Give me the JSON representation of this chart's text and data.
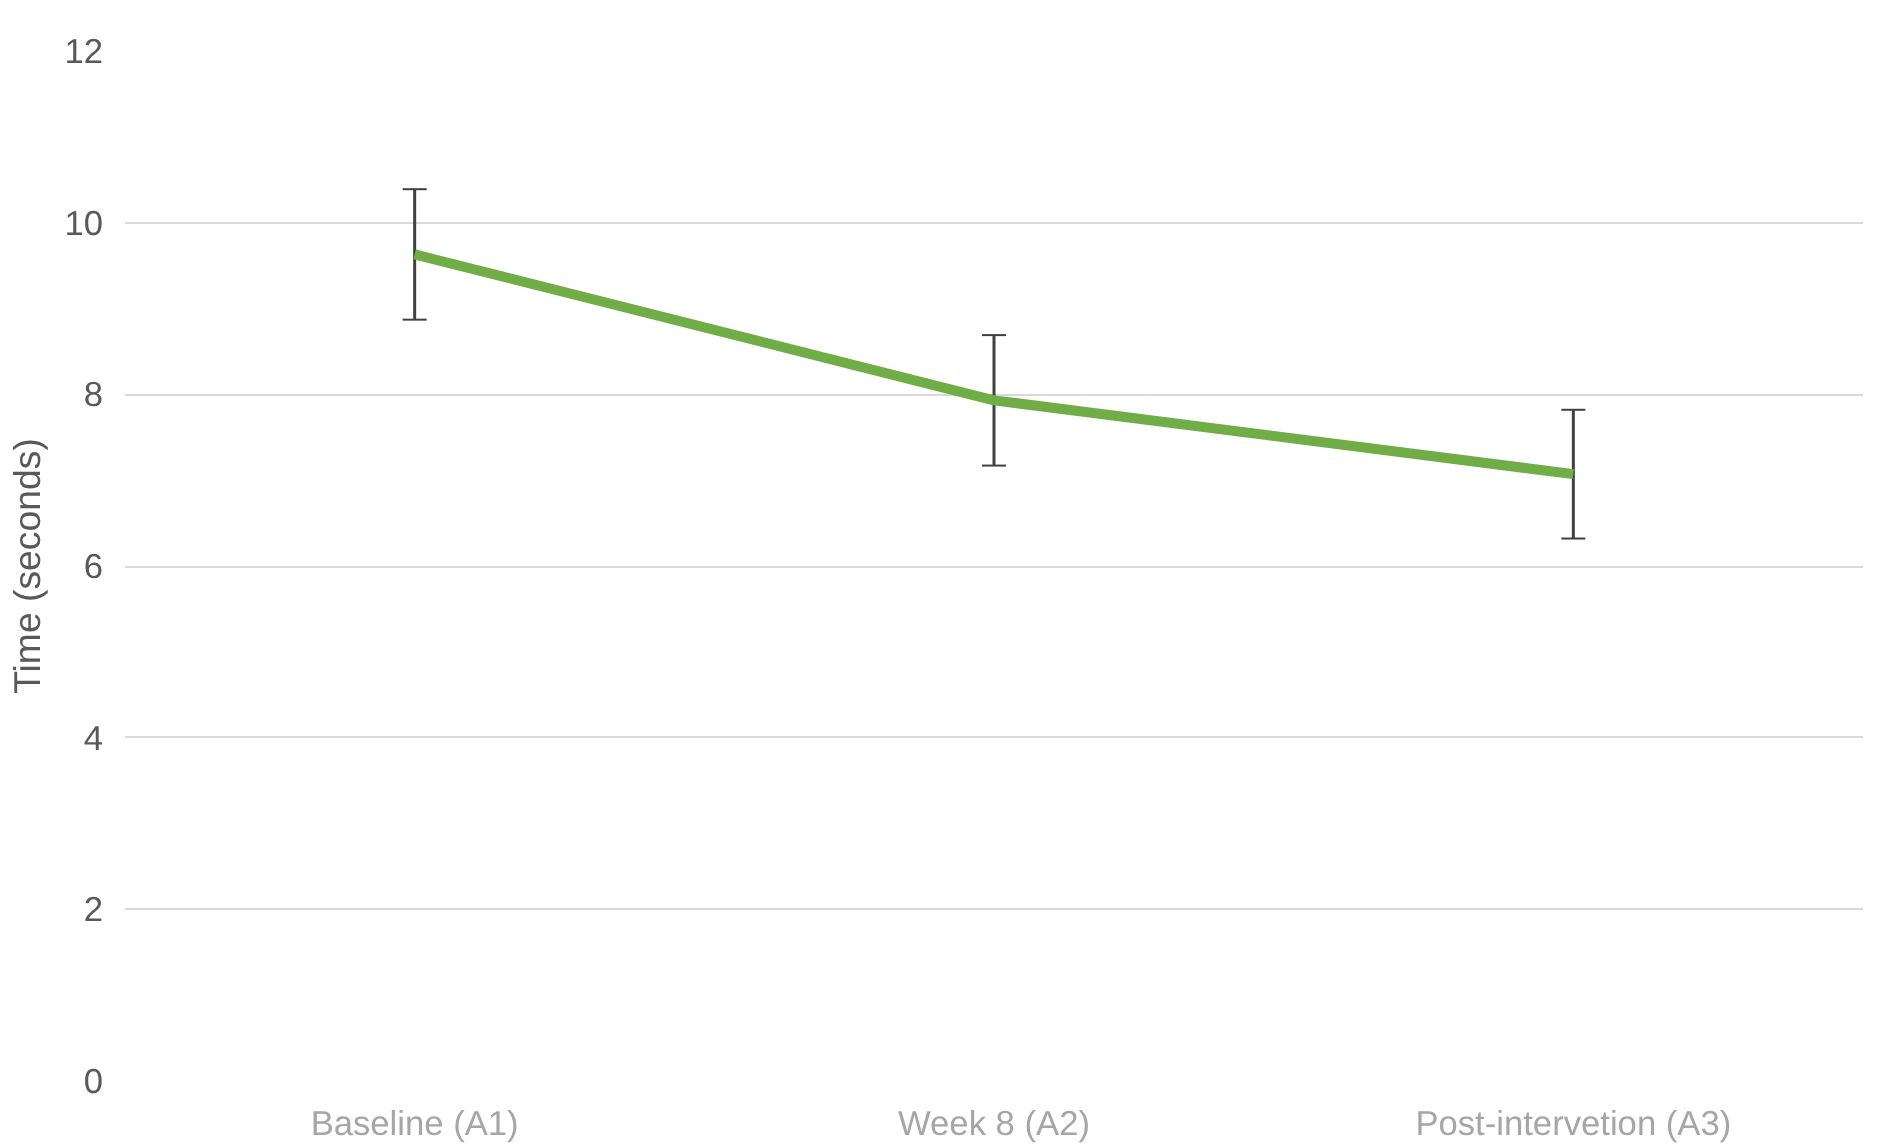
{
  "chart_data": {
    "type": "line",
    "ylabel": "Time (seconds)",
    "categories": [
      "Baseline (A1)",
      "Week 8 (A2)",
      "Post-intervetion (A3)"
    ],
    "series": [
      {
        "color": "#70ad47",
        "values": [
          9.63,
          7.93,
          7.07
        ],
        "errors": [
          0.76,
          0.76,
          0.75
        ]
      }
    ],
    "ylim": [
      0,
      12
    ],
    "yticks": [
      0,
      2,
      4,
      6,
      8,
      10,
      12
    ],
    "grid": "y",
    "marker": "none",
    "line_style": "solid"
  }
}
